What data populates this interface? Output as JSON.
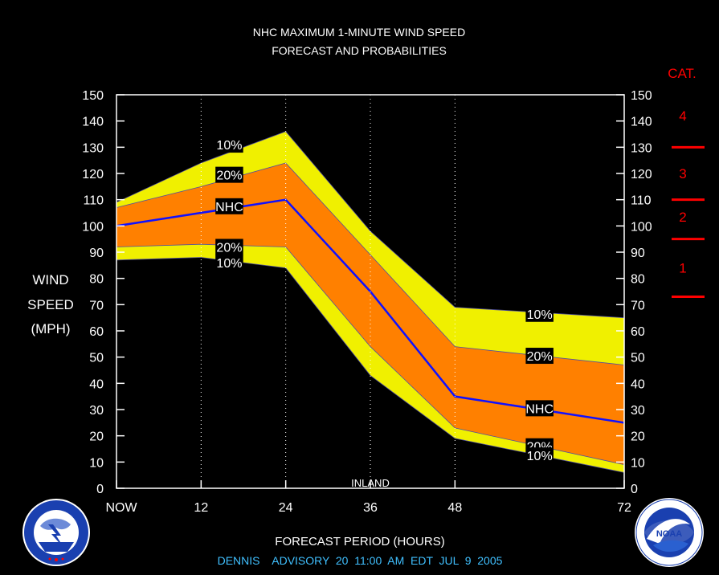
{
  "title_line1": "NHC MAXIMUM 1-MINUTE WIND SPEED",
  "title_line2": "FORECAST AND PROBABILITIES",
  "footer": {
    "xlabel": "FORECAST PERIOD (HOURS)",
    "advisory": "DENNIS    ADVISORY  20  11:00  AM  EDT  JUL  9  2005"
  },
  "ylabel_lines": [
    "WIND",
    "SPEED",
    "(MPH)"
  ],
  "category_header": "CAT.",
  "categories": [
    {
      "label": "4",
      "y": 142
    },
    {
      "label": "3",
      "y": 120
    },
    {
      "label": "2",
      "y": 103.5
    },
    {
      "label": "1",
      "y": 84
    }
  ],
  "category_boundaries": [
    130,
    110,
    95,
    73
  ],
  "annotation_inland": "INLAND",
  "logos": {
    "left": {
      "icon": "nws-logo",
      "text": "NATIONAL WEATHER SERVICE"
    },
    "right": {
      "icon": "noaa-logo",
      "text": "NOAA",
      "ring_text": "NATIONAL OCEANIC AND ATMOSPHERIC ADMINISTRATION · U.S. DEPARTMENT OF COMMERCE"
    }
  },
  "colors": {
    "background": "#000000",
    "band_10": "#F0F000",
    "band_20": "#FF8000",
    "nhc_line": "#1010FF",
    "title": "#FFFFFF",
    "advisory": "#40C0FF",
    "category": "#FF0000"
  },
  "chart_data": {
    "type": "area",
    "x": [
      0,
      12,
      24,
      36,
      48,
      72
    ],
    "x_tick_labels": [
      "NOW",
      "12",
      "24",
      "36",
      "48",
      "72"
    ],
    "xlim": [
      0,
      72
    ],
    "ylim": [
      0,
      150
    ],
    "y_ticks": [
      0,
      10,
      20,
      30,
      40,
      50,
      60,
      70,
      80,
      90,
      100,
      110,
      120,
      130,
      140,
      150
    ],
    "series": [
      {
        "name": "10%",
        "role": "upper_10",
        "values": [
          109,
          124,
          136,
          98,
          69,
          65
        ]
      },
      {
        "name": "20%",
        "role": "upper_20",
        "values": [
          107,
          115,
          124,
          89,
          54,
          47
        ]
      },
      {
        "name": "NHC",
        "role": "nhc",
        "values": [
          100,
          105,
          110,
          75,
          35,
          25
        ]
      },
      {
        "name": "20%",
        "role": "lower_20",
        "values": [
          92,
          93,
          92,
          54,
          23,
          9
        ]
      },
      {
        "name": "10%",
        "role": "lower_10",
        "values": [
          87,
          88,
          84,
          43,
          19,
          6
        ]
      }
    ],
    "labels": [
      {
        "text": "10%",
        "x": 16,
        "y": 131
      },
      {
        "text": "20%",
        "x": 16,
        "y": 119.5
      },
      {
        "text": "NHC",
        "x": 16,
        "y": 107.5
      },
      {
        "text": "20%",
        "x": 16,
        "y": 92
      },
      {
        "text": "10%",
        "x": 16,
        "y": 86
      },
      {
        "text": "10%",
        "x": 60,
        "y": 66.5
      },
      {
        "text": "20%",
        "x": 60,
        "y": 50.5
      },
      {
        "text": "NHC",
        "x": 60,
        "y": 30.5
      },
      {
        "text": "20%",
        "x": 60,
        "y": 16
      },
      {
        "text": "10%",
        "x": 60,
        "y": 12.5
      }
    ],
    "grid_verticals": [
      12,
      24,
      36,
      48
    ]
  }
}
